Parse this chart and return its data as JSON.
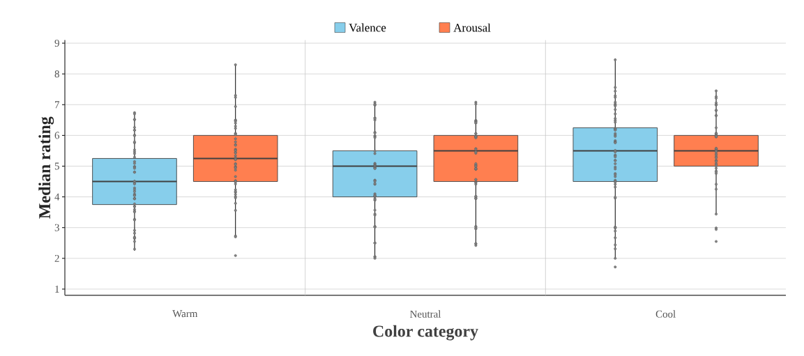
{
  "chart_data": {
    "type": "box",
    "xlabel": "Color category",
    "ylabel": "Median rating",
    "categories": [
      "Warm",
      "Neutral",
      "Cool"
    ],
    "ylim": [
      0.8,
      9.1
    ],
    "yticks": [
      1,
      2,
      3,
      4,
      5,
      6,
      7,
      8,
      9
    ],
    "grid": true,
    "legend": "top",
    "marker": "circle",
    "series": [
      {
        "name": "Valence",
        "color": "#87ceeb",
        "boxes": [
          {
            "low": 2.25,
            "q1": 3.75,
            "median": 4.5,
            "q3": 5.25,
            "high": 6.75
          },
          {
            "low": 2.0,
            "q1": 4.0,
            "median": 5.0,
            "q3": 5.5,
            "high": 7.0
          },
          {
            "low": 2.0,
            "q1": 4.5,
            "median": 5.5,
            "q3": 6.25,
            "high": 8.5
          }
        ]
      },
      {
        "name": "Arousal",
        "color": "#ff7f50",
        "boxes": [
          {
            "low": 2.75,
            "q1": 4.5,
            "median": 5.25,
            "q3": 6.0,
            "high": 8.3
          },
          {
            "low": 2.5,
            "q1": 4.5,
            "median": 5.5,
            "q3": 6.0,
            "high": 7.0
          },
          {
            "low": 3.45,
            "q1": 5.0,
            "median": 5.5,
            "q3": 6.0,
            "high": 7.45
          }
        ]
      },
      {
        "type": "scatter",
        "color": "#808080",
        "x": [
          "Warm",
          "Warm",
          "Warm",
          "Warm",
          "Warm",
          "Warm",
          "Warm",
          "Warm",
          "Warm",
          "Warm",
          "Warm",
          "Warm",
          "Warm",
          "Warm",
          "Warm",
          "Warm",
          "Warm",
          "Warm",
          "Warm",
          "Warm",
          "Warm",
          "Warm",
          "Warm",
          "Warm",
          "Warm",
          "Warm",
          "Warm",
          "Warm",
          "Warm",
          "Warm",
          "Warm",
          "Warm",
          "Warm",
          "Warm",
          "Warm",
          "Warm",
          "Warm",
          "Warm",
          "Warm",
          "Warm",
          "Warm",
          "Warm",
          "Warm",
          "Warm",
          "Warm",
          "Warm",
          "Warm",
          "Warm",
          "Warm",
          "Warm",
          "Neutral",
          "Neutral",
          "Neutral",
          "Neutral",
          "Neutral",
          "Neutral",
          "Neutral",
          "Neutral",
          "Neutral",
          "Neutral",
          "Neutral",
          "Neutral",
          "Neutral",
          "Neutral",
          "Neutral",
          "Neutral",
          "Neutral",
          "Neutral",
          "Neutral",
          "Neutral",
          "Neutral",
          "Neutral",
          "Neutral",
          "Neutral",
          "Neutral",
          "Neutral",
          "Neutral",
          "Neutral",
          "Neutral",
          "Neutral",
          "Neutral",
          "Neutral",
          "Neutral",
          "Neutral",
          "Neutral",
          "Neutral",
          "Neutral",
          "Neutral",
          "Neutral",
          "Neutral",
          "Neutral",
          "Neutral",
          "Neutral",
          "Neutral",
          "Neutral",
          "Neutral",
          "Neutral",
          "Neutral",
          "Cool",
          "Cool",
          "Cool",
          "Cool",
          "Cool",
          "Cool",
          "Cool",
          "Cool",
          "Cool",
          "Cool",
          "Cool",
          "Cool",
          "Cool",
          "Cool",
          "Cool",
          "Cool",
          "Cool",
          "Cool",
          "Cool",
          "Cool",
          "Cool",
          "Cool",
          "Cool",
          "Cool",
          "Cool",
          "Cool",
          "Cool",
          "Cool",
          "Cool",
          "Cool",
          "Cool",
          "Cool",
          "Cool",
          "Cool",
          "Cool",
          "Cool",
          "Cool",
          "Cool",
          "Cool",
          "Cool",
          "Cool",
          "Cool",
          "Cool",
          "Cool",
          "Cool",
          "Cool",
          "Cool",
          "Cool",
          "Cool",
          "Cool",
          "Cool",
          "Cool",
          "Cool",
          "Cool"
        ],
        "values": [
          6.74,
          6.7,
          6.51,
          6.52,
          6.26,
          6.17,
          6.17,
          6.01,
          5.99,
          5.76,
          5.79,
          5.53,
          5.47,
          5.41,
          5.29,
          5.15,
          5.09,
          4.99,
          4.97,
          4.93,
          4.81,
          4.8,
          4.51,
          4.5,
          4.44,
          4.42,
          4.29,
          4.23,
          4.17,
          4.09,
          4.06,
          4.04,
          3.95,
          3.94,
          3.94,
          3.77,
          3.7,
          3.68,
          3.59,
          3.53,
          3.51,
          3.27,
          3.25,
          2.91,
          2.82,
          2.65,
          2.69,
          2.67,
          2.55,
          2.3,
          7.08,
          7.02,
          6.98,
          7.0,
          6.57,
          6.5,
          6.55,
          6.1,
          6.08,
          5.99,
          5.96,
          5.93,
          5.49,
          5.41,
          5.09,
          5.07,
          5.04,
          5.02,
          5.0,
          4.97,
          4.94,
          4.94,
          4.92,
          4.54,
          4.54,
          4.5,
          4.41,
          4.43,
          4.1,
          4.05,
          4.02,
          4.01,
          4.01,
          4.05,
          3.94,
          3.89,
          3.91,
          3.57,
          3.44,
          3.41,
          3.04,
          3.02,
          3.02,
          2.5,
          2.5,
          2.06,
          2.04,
          2.0,
          8.46,
          7.56,
          7.44,
          7.29,
          7.24,
          7.08,
          7.02,
          6.99,
          6.96,
          6.84,
          6.7,
          6.55,
          6.49,
          6.43,
          6.23,
          6.19,
          6.21,
          6.17,
          6.06,
          6.01,
          5.97,
          5.83,
          5.79,
          5.78,
          5.76,
          5.51,
          5.46,
          5.36,
          5.34,
          5.3,
          5.19,
          5.18,
          5.08,
          4.97,
          4.91,
          4.76,
          4.72,
          4.66,
          4.54,
          4.51,
          4.48,
          4.41,
          4.32,
          3.96,
          3.99,
          3.02,
          2.99,
          3.0,
          2.89,
          2.67,
          2.44,
          2.31,
          2.0,
          1.72
        ]
      },
      {
        "type": "scatter",
        "color": "#808080",
        "x": [
          "Warm",
          "Warm",
          "Warm",
          "Warm",
          "Warm",
          "Warm",
          "Warm",
          "Warm",
          "Warm",
          "Warm",
          "Warm",
          "Warm",
          "Warm",
          "Warm",
          "Warm",
          "Warm",
          "Warm",
          "Warm",
          "Warm",
          "Warm",
          "Warm",
          "Warm",
          "Warm",
          "Warm",
          "Warm",
          "Warm",
          "Warm",
          "Warm",
          "Warm",
          "Warm",
          "Warm",
          "Warm",
          "Warm",
          "Warm",
          "Warm",
          "Warm",
          "Warm",
          "Warm",
          "Warm",
          "Warm",
          "Warm",
          "Warm",
          "Warm",
          "Warm",
          "Warm",
          "Warm",
          "Warm",
          "Warm",
          "Warm",
          "Neutral",
          "Neutral",
          "Neutral",
          "Neutral",
          "Neutral",
          "Neutral",
          "Neutral",
          "Neutral",
          "Neutral",
          "Neutral",
          "Neutral",
          "Neutral",
          "Neutral",
          "Neutral",
          "Neutral",
          "Neutral",
          "Neutral",
          "Neutral",
          "Neutral",
          "Neutral",
          "Neutral",
          "Neutral",
          "Neutral",
          "Neutral",
          "Neutral",
          "Neutral",
          "Neutral",
          "Neutral",
          "Neutral",
          "Neutral",
          "Neutral",
          "Neutral",
          "Neutral",
          "Neutral",
          "Neutral",
          "Neutral",
          "Neutral",
          "Neutral",
          "Neutral",
          "Neutral",
          "Neutral",
          "Neutral",
          "Neutral",
          "Neutral",
          "Neutral",
          "Neutral",
          "Neutral",
          "Cool",
          "Cool",
          "Cool",
          "Cool",
          "Cool",
          "Cool",
          "Cool",
          "Cool",
          "Cool",
          "Cool",
          "Cool",
          "Cool",
          "Cool",
          "Cool",
          "Cool",
          "Cool",
          "Cool",
          "Cool",
          "Cool",
          "Cool",
          "Cool",
          "Cool",
          "Cool",
          "Cool",
          "Cool",
          "Cool",
          "Cool",
          "Cool",
          "Cool",
          "Cool",
          "Cool",
          "Cool",
          "Cool",
          "Cool",
          "Cool",
          "Cool",
          "Cool",
          "Cool",
          "Cool",
          "Cool",
          "Cool",
          "Cool",
          "Cool",
          "Cool",
          "Cool",
          "Cool"
        ],
        "values": [
          8.3,
          7.3,
          7.24,
          6.94,
          6.5,
          6.49,
          6.46,
          6.4,
          6.3,
          6.23,
          6.06,
          6.06,
          6.02,
          5.89,
          5.79,
          5.7,
          5.68,
          5.55,
          5.52,
          5.5,
          5.44,
          5.43,
          5.34,
          5.27,
          5.24,
          5.22,
          5.21,
          5.08,
          5.06,
          4.99,
          4.96,
          4.94,
          4.87,
          4.66,
          4.53,
          4.51,
          4.48,
          4.42,
          4.23,
          4.15,
          4.17,
          4.08,
          4.01,
          3.97,
          3.79,
          3.56,
          2.73,
          2.7,
          2.09,
          7.08,
          7.02,
          6.49,
          6.47,
          6.46,
          6.44,
          6.4,
          6.41,
          6.06,
          6.06,
          5.98,
          5.97,
          5.95,
          5.95,
          5.92,
          5.96,
          5.57,
          5.55,
          5.46,
          5.42,
          5.46,
          5.04,
          5.03,
          5.08,
          4.98,
          4.92,
          4.9,
          4.9,
          4.92,
          5.0,
          4.55,
          4.57,
          4.46,
          4.46,
          4.41,
          4.01,
          3.97,
          3.94,
          3.95,
          4.02,
          3.04,
          2.97,
          3.02,
          2.96,
          2.48,
          2.48,
          2.42,
          7.45,
          7.26,
          7.21,
          7.06,
          7.0,
          6.99,
          6.81,
          6.82,
          6.65,
          6.64,
          6.25,
          6.07,
          6.04,
          6.01,
          5.98,
          5.96,
          5.95,
          5.97,
          6.06,
          5.58,
          5.55,
          5.54,
          5.57,
          5.51,
          5.48,
          5.46,
          5.4,
          5.36,
          5.3,
          5.27,
          5.19,
          5.18,
          5.14,
          5.07,
          5.06,
          5.0,
          4.93,
          4.84,
          4.76,
          4.81,
          4.41,
          4.25,
          3.44,
          2.99,
          2.94,
          2.55
        ]
      }
    ]
  }
}
